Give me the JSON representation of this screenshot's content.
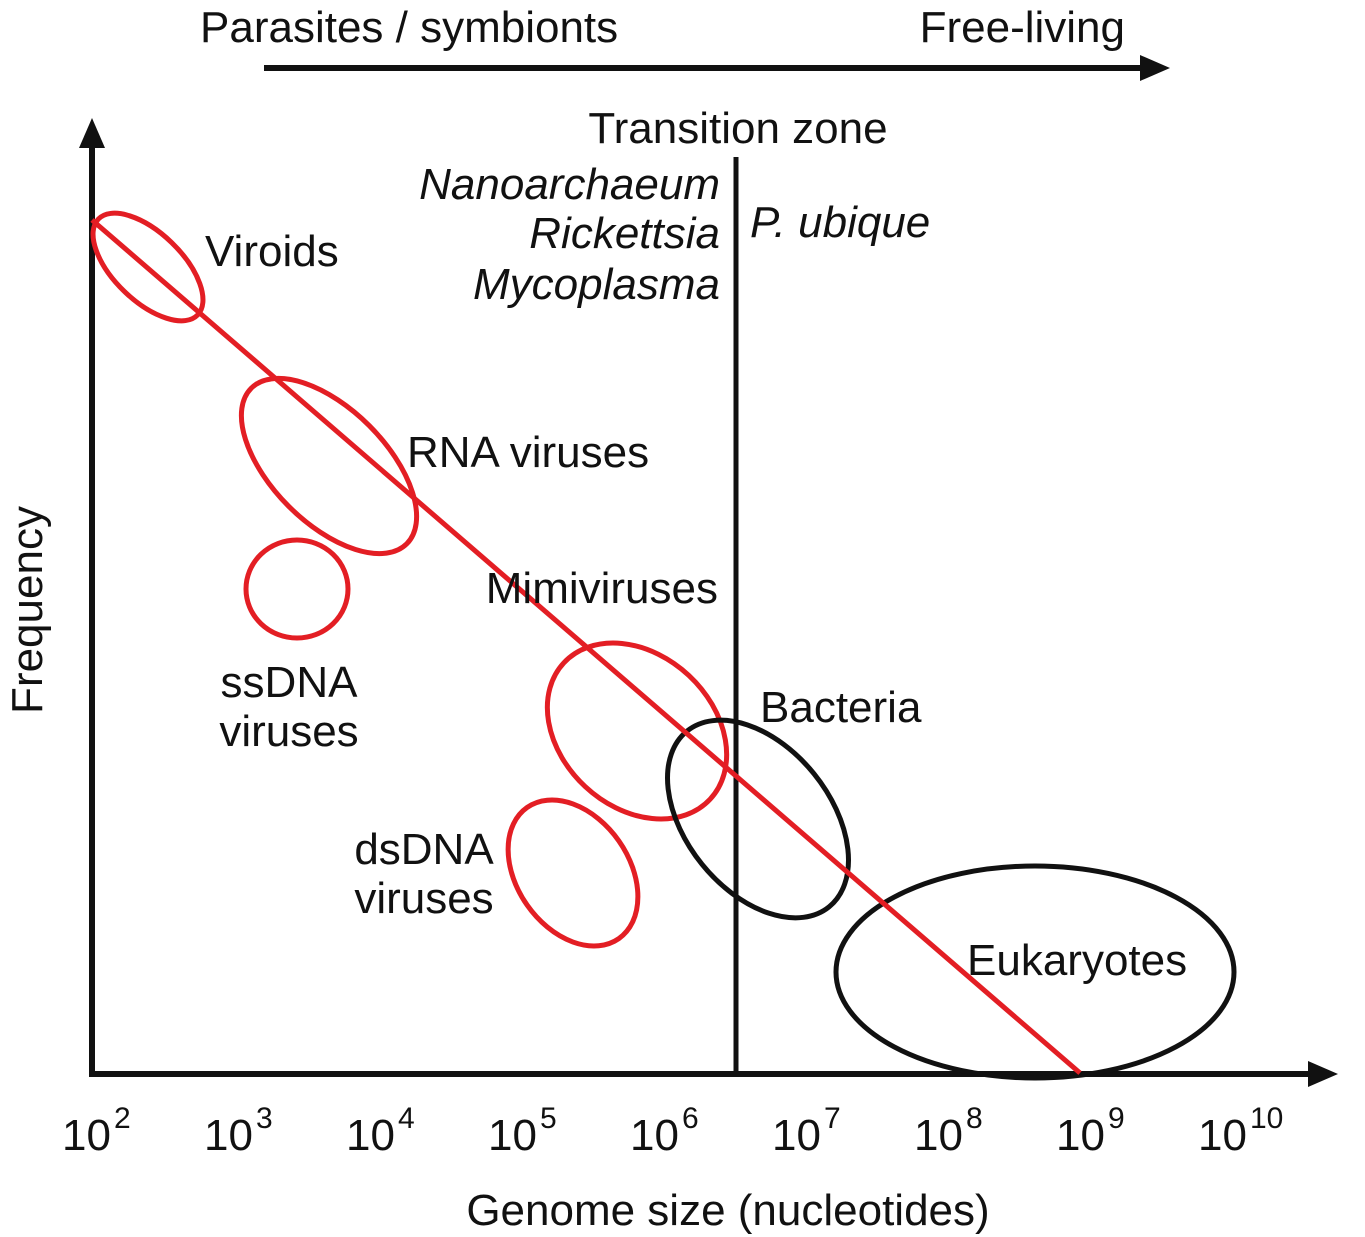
{
  "header": {
    "left_label": "Parasites / symbionts",
    "right_label": "Free-living"
  },
  "transition": {
    "title": "Transition zone",
    "left_taxa": [
      "Nanoarchaeum",
      "Rickettsia",
      "Mycoplasma"
    ],
    "right_taxon": "P. ubique"
  },
  "axes": {
    "y_label": "Frequency",
    "x_label": "Genome size (nucleotides)",
    "x_ticks": [
      {
        "base": "10",
        "exp": "2"
      },
      {
        "base": "10",
        "exp": "3"
      },
      {
        "base": "10",
        "exp": "4"
      },
      {
        "base": "10",
        "exp": "5"
      },
      {
        "base": "10",
        "exp": "6"
      },
      {
        "base": "10",
        "exp": "7"
      },
      {
        "base": "10",
        "exp": "8"
      },
      {
        "base": "10",
        "exp": "9"
      },
      {
        "base": "10",
        "exp": "10"
      }
    ]
  },
  "groups": {
    "viroids": "Viroids",
    "rna_viruses": "RNA viruses",
    "ssdna_line1": "ssDNA",
    "ssdna_line2": "viruses",
    "mimiviruses": "Mimiviruses",
    "dsdna_line1": "dsDNA",
    "dsdna_line2": "viruses",
    "bacteria": "Bacteria",
    "eukaryotes": "Eukaryotes"
  },
  "colors": {
    "virus_group": "#e31e24",
    "cellular_group": "#111111",
    "trend_line": "#e31e24",
    "axis": "#111111"
  }
}
